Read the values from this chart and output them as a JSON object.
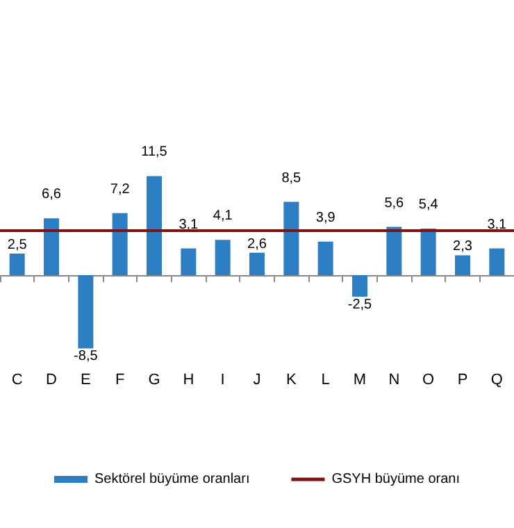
{
  "chart_data": {
    "type": "bar",
    "categories": [
      "C",
      "D",
      "E",
      "F",
      "G",
      "H",
      "I",
      "J",
      "K",
      "L",
      "M",
      "N",
      "O",
      "P",
      "Q"
    ],
    "series": [
      {
        "name": "Sektörel büyüme oranları",
        "color": "#2e7ec4",
        "values": [
          2.5,
          6.6,
          -8.5,
          7.2,
          11.5,
          3.1,
          4.1,
          2.6,
          8.5,
          3.9,
          -2.5,
          5.6,
          5.4,
          2.3,
          3.1
        ],
        "value_labels": [
          "2,5",
          "6,6",
          "-8,5",
          "7,2",
          "11,5",
          "3,1",
          "4,1",
          "2,6",
          "8,5",
          "3,9",
          "-2,5",
          "5,6",
          "5,4",
          "2,3",
          "3,1"
        ]
      }
    ],
    "ref_lines": [
      {
        "axis": "y",
        "value": 5.2,
        "label": "GSYH büyüme oranı",
        "color": "#7b1416"
      }
    ],
    "legend": "bottom"
  }
}
